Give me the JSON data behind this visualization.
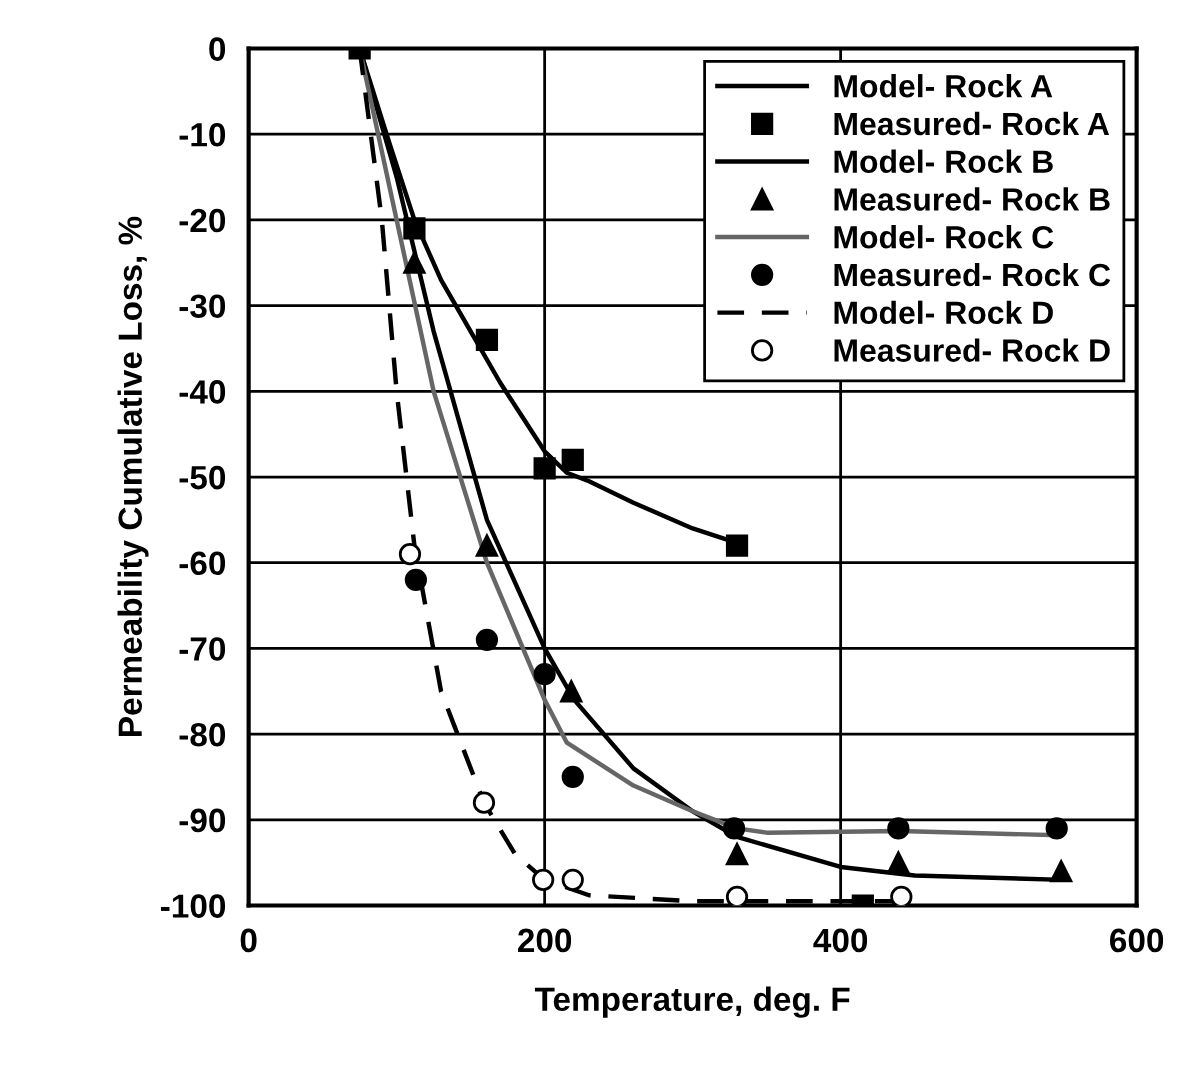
{
  "chart_data": {
    "type": "line",
    "xlabel": "Temperature, deg. F",
    "ylabel": "Permeability Cumulative Loss, %",
    "xlim": [
      0,
      600
    ],
    "ylim": [
      -100,
      0
    ],
    "xticks": [
      0,
      200,
      400,
      600
    ],
    "yticks": [
      0,
      -10,
      -20,
      -30,
      -40,
      -50,
      -60,
      -70,
      -80,
      -90,
      -100
    ],
    "grid": true,
    "legend": "top right",
    "series": [
      {
        "name": "Model- Rock A",
        "line_style": "solid",
        "marker": "none",
        "color": "#000000",
        "x": [
          75,
          95,
          112,
          130,
          150,
          170,
          185,
          200,
          215,
          230,
          260,
          300,
          330
        ],
        "values": [
          0,
          -11,
          -20,
          -27,
          -33,
          -39,
          -43,
          -47,
          -49.5,
          -50.5,
          -53,
          -56,
          -57.7
        ]
      },
      {
        "name": "Measured- Rock A",
        "type": "scatter",
        "marker": "square",
        "color": "#000000",
        "x": [
          75,
          112,
          161,
          200,
          219,
          330,
          415
        ],
        "values": [
          0,
          -21,
          -34,
          -49,
          -48,
          -58,
          -100
        ]
      },
      {
        "name": "Model- Rock B",
        "line_style": "solid",
        "marker": "none",
        "color": "#000000",
        "x": [
          75,
          100,
          125,
          161,
          200,
          220,
          260,
          300,
          330,
          400,
          450,
          549
        ],
        "values": [
          0,
          -15,
          -33,
          -55,
          -70,
          -76,
          -84,
          -89,
          -92,
          -95.5,
          -96.5,
          -97
        ]
      },
      {
        "name": "Measured- Rock B",
        "type": "scatter",
        "marker": "triangle",
        "color": "#000000",
        "x": [
          112,
          161,
          218,
          330,
          439,
          549
        ],
        "values": [
          -25,
          -58,
          -75,
          -94,
          -95,
          -96
        ]
      },
      {
        "name": "Model- Rock C",
        "line_style": "solid",
        "marker": "none",
        "color": "#666666",
        "x": [
          75,
          100,
          125,
          161,
          200,
          215,
          260,
          300,
          330,
          350,
          440,
          546
        ],
        "values": [
          0,
          -20,
          -40,
          -60,
          -76,
          -81,
          -86,
          -89,
          -91,
          -91.5,
          -91.3,
          -91.8
        ]
      },
      {
        "name": "Measured- Rock C",
        "type": "scatter",
        "marker": "circle",
        "color": "#000000",
        "x": [
          113,
          161,
          200,
          219,
          328,
          439,
          546
        ],
        "values": [
          -62,
          -69,
          -73,
          -85,
          -91,
          -91,
          -91
        ]
      },
      {
        "name": "Model- Rock D",
        "line_style": "dashed",
        "marker": "none",
        "color": "#000000",
        "x": [
          75,
          90,
          100,
          112,
          130,
          159,
          180,
          200,
          230,
          300,
          441
        ],
        "values": [
          0,
          -20,
          -40,
          -58,
          -75,
          -88,
          -94,
          -97,
          -98.8,
          -99.5,
          -99.5
        ]
      },
      {
        "name": "Measured- Rock D",
        "type": "scatter",
        "marker": "circle",
        "color": "#ffffff",
        "x": [
          109,
          159,
          199,
          219,
          330,
          441
        ],
        "values": [
          -59,
          -88,
          -97,
          -97,
          -99,
          -99
        ]
      }
    ]
  }
}
